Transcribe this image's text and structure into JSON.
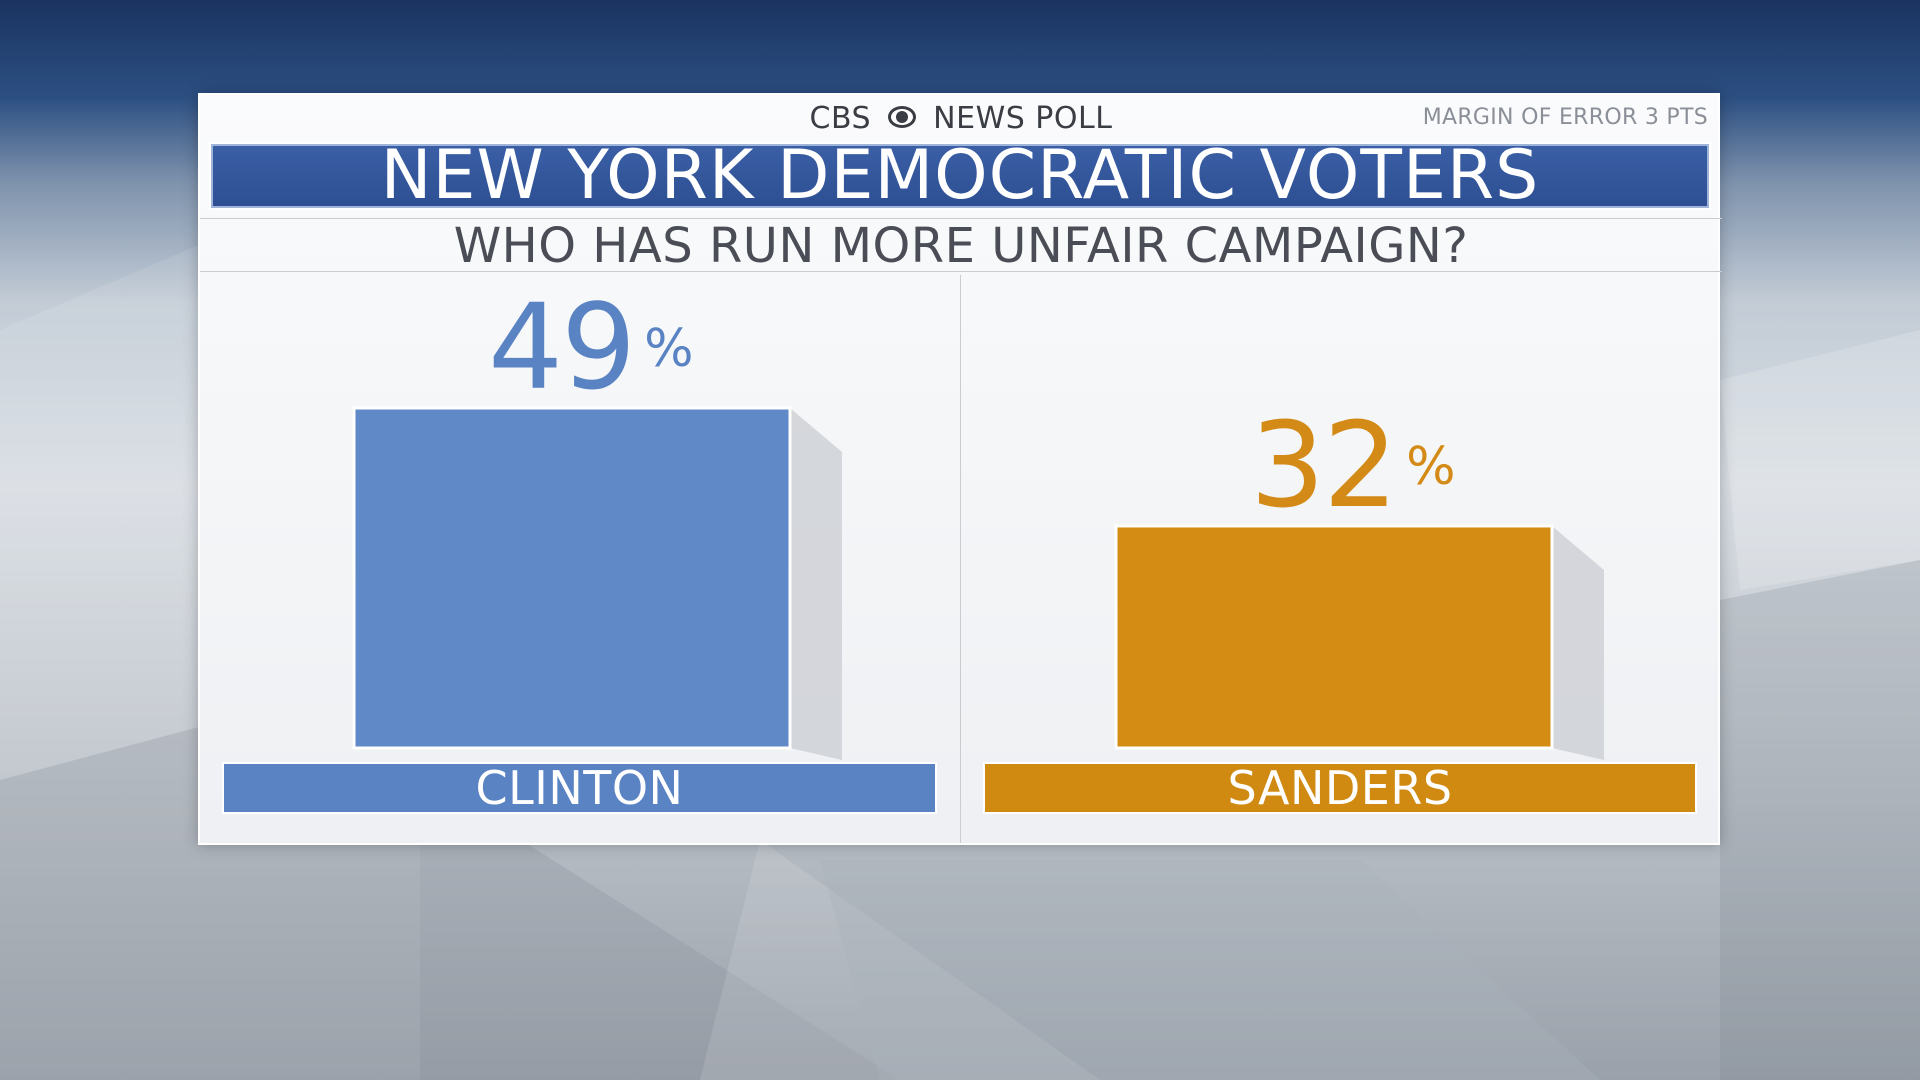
{
  "header": {
    "brand_left": "CBS",
    "brand_right": "NEWS POLL",
    "brand_logo": "cbs-eye-icon",
    "margin_of_error": "MARGIN OF ERROR 3 PTS",
    "title": "NEW YORK DEMOCRATIC VOTERS",
    "question": "WHO HAS RUN MORE UNFAIR CAMPAIGN?"
  },
  "chart_data": {
    "type": "bar",
    "title": "WHO HAS RUN MORE UNFAIR CAMPAIGN?",
    "categories": [
      "CLINTON",
      "SANDERS"
    ],
    "values": [
      49,
      32
    ],
    "value_labels": [
      "49",
      "32"
    ],
    "unit": "%",
    "colors": [
      "#6089c7",
      "#d58c14"
    ],
    "label_colors": [
      "#5a83c4",
      "#d08a12"
    ],
    "text_colors": [
      "#5a83c4",
      "#d48a16"
    ],
    "ylim": [
      0,
      60
    ],
    "grid": false,
    "legend": "none"
  }
}
